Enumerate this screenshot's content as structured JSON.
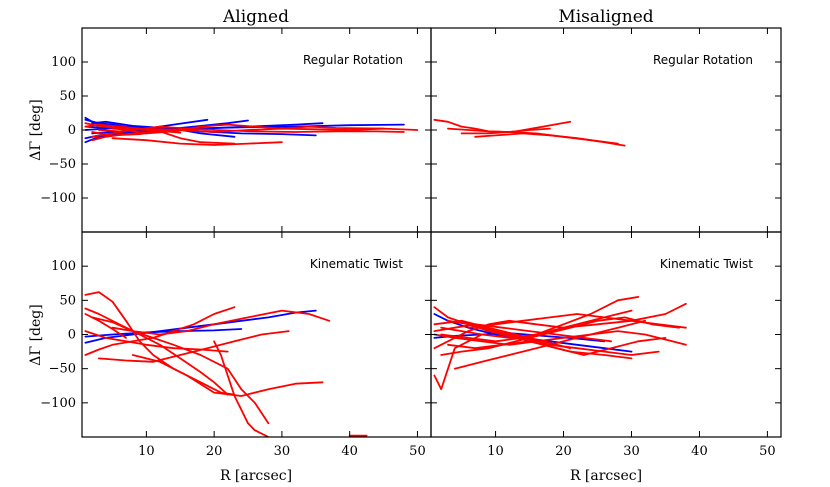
{
  "figure": {
    "column_titles": [
      "Aligned",
      "Misaligned"
    ],
    "xlabel": "R [arcsec]",
    "ylabel": "ΔΓ [deg]",
    "colors": {
      "blue": "#0000ff",
      "red": "#ff0000",
      "axis": "#000000"
    }
  },
  "chart_data": [
    {
      "type": "line",
      "panel": "top-left",
      "title": "Aligned",
      "label": "Regular Rotation",
      "xlim": [
        0.5,
        52
      ],
      "ylim": [
        -150,
        150
      ],
      "xticks": [
        10,
        20,
        30,
        40,
        50
      ],
      "yticks": [
        100,
        50,
        0,
        -50,
        -100
      ],
      "xlabel": "",
      "ylabel": "ΔΓ [deg]",
      "series": [
        {
          "color": "blue",
          "x": [
            1,
            3,
            5,
            8,
            12
          ],
          "y": [
            15,
            10,
            8,
            3,
            0
          ]
        },
        {
          "color": "blue",
          "x": [
            1,
            3,
            6,
            10,
            15,
            20
          ],
          "y": [
            -12,
            -8,
            -4,
            -2,
            0,
            2
          ]
        },
        {
          "color": "blue",
          "x": [
            1,
            4,
            8,
            12,
            18,
            25,
            32,
            36
          ],
          "y": [
            5,
            3,
            0,
            -2,
            2,
            5,
            8,
            10
          ]
        },
        {
          "color": "blue",
          "x": [
            2,
            5,
            10,
            16,
            24,
            32,
            40,
            48
          ],
          "y": [
            -5,
            -3,
            0,
            2,
            4,
            5,
            7,
            8
          ]
        },
        {
          "color": "blue",
          "x": [
            1,
            3,
            7,
            12,
            17,
            22,
            25
          ],
          "y": [
            -18,
            -10,
            -5,
            0,
            5,
            10,
            14
          ]
        },
        {
          "color": "blue",
          "x": [
            2,
            4,
            8,
            14,
            18,
            23
          ],
          "y": [
            10,
            12,
            6,
            2,
            -5,
            -10
          ]
        },
        {
          "color": "blue",
          "x": [
            1,
            2,
            4,
            7,
            10
          ],
          "y": [
            18,
            12,
            5,
            0,
            -5
          ]
        },
        {
          "color": "blue",
          "x": [
            3,
            6,
            10,
            14,
            19
          ],
          "y": [
            -8,
            -5,
            2,
            8,
            15
          ]
        },
        {
          "color": "blue",
          "x": [
            1,
            4,
            8,
            12,
            18,
            24,
            30,
            35
          ],
          "y": [
            0,
            2,
            5,
            3,
            -2,
            -5,
            -6,
            -8
          ]
        },
        {
          "color": "red",
          "x": [
            1,
            3,
            6,
            10,
            14
          ],
          "y": [
            10,
            6,
            2,
            0,
            -2
          ]
        },
        {
          "color": "red",
          "x": [
            2,
            5,
            9,
            12,
            15,
            18,
            23
          ],
          "y": [
            -3,
            -8,
            -6,
            -2,
            -12,
            -18,
            -20
          ]
        },
        {
          "color": "red",
          "x": [
            3,
            6,
            10,
            15,
            20,
            25,
            30,
            35,
            40,
            45,
            50
          ],
          "y": [
            0,
            -2,
            2,
            0,
            -3,
            0,
            2,
            1,
            0,
            2,
            0
          ]
        },
        {
          "color": "red",
          "x": [
            2,
            5,
            8,
            12,
            16,
            20,
            26,
            32,
            38,
            44,
            48
          ],
          "y": [
            -10,
            -5,
            0,
            5,
            2,
            0,
            -2,
            -3,
            -2,
            -2,
            -3
          ]
        },
        {
          "color": "red",
          "x": [
            4,
            7,
            10,
            14,
            18,
            22,
            26,
            30,
            34,
            38,
            45
          ],
          "y": [
            5,
            0,
            -5,
            -2,
            5,
            8,
            5,
            2,
            5,
            3,
            2
          ]
        },
        {
          "color": "red",
          "x": [
            1,
            3,
            6,
            9,
            12,
            15
          ],
          "y": [
            5,
            8,
            5,
            2,
            -1,
            -4
          ]
        },
        {
          "color": "red",
          "x": [
            5,
            10,
            15,
            20,
            25,
            30
          ],
          "y": [
            -12,
            -15,
            -20,
            -22,
            -20,
            -18
          ]
        },
        {
          "color": "red",
          "x": [
            2,
            4,
            7,
            11,
            16
          ],
          "y": [
            -15,
            -10,
            -6,
            -3,
            0
          ]
        }
      ]
    },
    {
      "type": "line",
      "panel": "top-right",
      "title": "Misaligned",
      "label": "Regular Rotation",
      "xlim": [
        0.5,
        52
      ],
      "ylim": [
        -150,
        150
      ],
      "xticks": [
        10,
        20,
        30,
        40,
        50
      ],
      "yticks": [
        100,
        50,
        0,
        -50,
        -100
      ],
      "xlabel": "",
      "ylabel": "",
      "series": [
        {
          "color": "red",
          "x": [
            1,
            3,
            5,
            7,
            9,
            12,
            15,
            18
          ],
          "y": [
            15,
            12,
            5,
            2,
            -2,
            -3,
            0,
            2
          ]
        },
        {
          "color": "red",
          "x": [
            3,
            6,
            9,
            12,
            16,
            20,
            24,
            28
          ],
          "y": [
            2,
            0,
            -2,
            -3,
            -5,
            -10,
            -15,
            -20
          ]
        },
        {
          "color": "red",
          "x": [
            7,
            10,
            14,
            18,
            22,
            26,
            29
          ],
          "y": [
            -10,
            -8,
            -5,
            -8,
            -12,
            -18,
            -23
          ]
        },
        {
          "color": "red",
          "x": [
            5,
            9,
            13,
            17,
            21
          ],
          "y": [
            -5,
            -5,
            -2,
            5,
            12
          ]
        }
      ]
    },
    {
      "type": "line",
      "panel": "bottom-left",
      "title": "",
      "label": "Kinematic Twist",
      "xlim": [
        0.5,
        52
      ],
      "ylim": [
        -150,
        150
      ],
      "xticks": [
        10,
        20,
        30,
        40,
        50
      ],
      "yticks": [
        100,
        50,
        0,
        -50,
        -100
      ],
      "xlabel": "R [arcsec]",
      "ylabel": "ΔΓ [deg]",
      "series": [
        {
          "color": "blue",
          "x": [
            1,
            4,
            8,
            12,
            16,
            20,
            24,
            28,
            32,
            35
          ],
          "y": [
            -12,
            -5,
            0,
            5,
            10,
            15,
            20,
            25,
            32,
            35
          ]
        },
        {
          "color": "blue",
          "x": [
            1,
            5,
            10,
            15,
            20,
            24
          ],
          "y": [
            -3,
            0,
            3,
            5,
            6,
            8
          ]
        },
        {
          "color": "red",
          "x": [
            1,
            3,
            5,
            7,
            9,
            11,
            14,
            18,
            21,
            23
          ],
          "y": [
            58,
            62,
            48,
            20,
            -10,
            -30,
            -50,
            -70,
            -85,
            -88
          ]
        },
        {
          "color": "red",
          "x": [
            1,
            3,
            6,
            9,
            12,
            15,
            18,
            20,
            22
          ],
          "y": [
            38,
            30,
            15,
            0,
            -15,
            -35,
            -55,
            -70,
            -88
          ]
        },
        {
          "color": "red",
          "x": [
            2,
            5,
            8,
            11,
            14,
            18,
            22,
            24,
            26,
            28
          ],
          "y": [
            25,
            18,
            5,
            -5,
            -15,
            -30,
            -50,
            -80,
            -100,
            -130
          ]
        },
        {
          "color": "red",
          "x": [
            20,
            21,
            22,
            23,
            24,
            25,
            26,
            28
          ],
          "y": [
            -10,
            -30,
            -60,
            -90,
            -110,
            -130,
            -140,
            -150
          ]
        },
        {
          "color": "red",
          "x": [
            8,
            12,
            16,
            20,
            24,
            28,
            32,
            36
          ],
          "y": [
            -30,
            -40,
            -60,
            -85,
            -90,
            -80,
            -72,
            -70
          ]
        },
        {
          "color": "red",
          "x": [
            1,
            3,
            5,
            8,
            11,
            14,
            17,
            20,
            23
          ],
          "y": [
            -30,
            -22,
            -15,
            -10,
            -5,
            5,
            15,
            30,
            40
          ]
        },
        {
          "color": "red",
          "x": [
            5,
            8,
            12,
            16,
            20,
            25,
            30,
            34,
            37
          ],
          "y": [
            10,
            5,
            0,
            5,
            15,
            25,
            35,
            30,
            20
          ]
        },
        {
          "color": "red",
          "x": [
            1,
            4,
            7,
            10,
            14,
            18,
            22
          ],
          "y": [
            5,
            -5,
            -10,
            -15,
            -20,
            -22,
            -25
          ]
        },
        {
          "color": "red",
          "x": [
            3,
            7,
            11,
            15,
            19,
            23,
            27,
            31
          ],
          "y": [
            -35,
            -38,
            -40,
            -30,
            -20,
            -10,
            0,
            5
          ]
        },
        {
          "color": "red",
          "x": [
            1,
            3,
            5,
            7
          ],
          "y": [
            30,
            20,
            8,
            -5
          ]
        },
        {
          "color": "red",
          "x": [
            40,
            42.5
          ],
          "y": [
            -148,
            -148
          ]
        }
      ]
    },
    {
      "type": "line",
      "panel": "bottom-right",
      "title": "",
      "label": "Kinematic Twist",
      "xlim": [
        0.5,
        52
      ],
      "ylim": [
        -150,
        150
      ],
      "xticks": [
        10,
        20,
        30,
        40,
        50
      ],
      "yticks": [
        100,
        50,
        0,
        -50,
        -100
      ],
      "xlabel": "R [arcsec]",
      "ylabel": "",
      "series": [
        {
          "color": "blue",
          "x": [
            1,
            3,
            6,
            10,
            14,
            18,
            22,
            26,
            30
          ],
          "y": [
            30,
            20,
            10,
            0,
            -5,
            -10,
            -15,
            -20,
            -25
          ]
        },
        {
          "color": "blue",
          "x": [
            1,
            4,
            8,
            12,
            17,
            22,
            26
          ],
          "y": [
            -5,
            -2,
            0,
            2,
            -2,
            -6,
            -10
          ]
        },
        {
          "color": "red",
          "x": [
            1,
            2,
            3,
            4,
            6,
            8
          ],
          "y": [
            -60,
            -80,
            -50,
            -20,
            -10,
            0
          ]
        },
        {
          "color": "red",
          "x": [
            1,
            3,
            6,
            9,
            12,
            16,
            20,
            25,
            30,
            35,
            38
          ],
          "y": [
            -20,
            -10,
            5,
            15,
            20,
            15,
            10,
            15,
            20,
            30,
            45
          ]
        },
        {
          "color": "red",
          "x": [
            2,
            5,
            8,
            12,
            16,
            20,
            24,
            28,
            31
          ],
          "y": [
            10,
            5,
            0,
            -5,
            0,
            15,
            30,
            50,
            55
          ]
        },
        {
          "color": "red",
          "x": [
            1,
            4,
            8,
            12,
            16,
            20,
            24,
            28,
            32,
            36,
            38
          ],
          "y": [
            0,
            -5,
            -10,
            -15,
            -10,
            -5,
            0,
            5,
            0,
            -10,
            -15
          ]
        },
        {
          "color": "red",
          "x": [
            3,
            6,
            10,
            14,
            18,
            22,
            26,
            30,
            34
          ],
          "y": [
            20,
            15,
            5,
            -5,
            -15,
            -20,
            -25,
            -30,
            -25
          ]
        },
        {
          "color": "red",
          "x": [
            2,
            5,
            9,
            13,
            17,
            21,
            25,
            29,
            33,
            37
          ],
          "y": [
            -30,
            -25,
            -20,
            -10,
            0,
            10,
            20,
            25,
            15,
            10
          ]
        },
        {
          "color": "red",
          "x": [
            1,
            3,
            6,
            9,
            13,
            17,
            21,
            26,
            30
          ],
          "y": [
            40,
            25,
            15,
            5,
            -5,
            -15,
            -25,
            -30,
            -35
          ]
        },
        {
          "color": "red",
          "x": [
            4,
            8,
            12,
            16,
            20,
            24,
            28,
            32
          ],
          "y": [
            -50,
            -40,
            -30,
            -20,
            -10,
            0,
            10,
            20
          ]
        },
        {
          "color": "red",
          "x": [
            1,
            4,
            7,
            11,
            15,
            19,
            23,
            27
          ],
          "y": [
            5,
            10,
            15,
            10,
            5,
            0,
            -5,
            -10
          ]
        },
        {
          "color": "red",
          "x": [
            6,
            10,
            14,
            18,
            22,
            26,
            30,
            34,
            38
          ],
          "y": [
            10,
            15,
            20,
            25,
            30,
            25,
            20,
            15,
            10
          ]
        },
        {
          "color": "red",
          "x": [
            2,
            6,
            10,
            14,
            18,
            22,
            26,
            30
          ],
          "y": [
            0,
            -5,
            -10,
            -5,
            5,
            15,
            25,
            35
          ]
        },
        {
          "color": "red",
          "x": [
            3,
            7,
            11,
            15,
            19,
            23,
            27,
            31,
            35
          ],
          "y": [
            -15,
            -20,
            -15,
            -10,
            -20,
            -30,
            -20,
            -10,
            -5
          ]
        },
        {
          "color": "red",
          "x": [
            1,
            5,
            9,
            13,
            17,
            21
          ],
          "y": [
            15,
            20,
            10,
            0,
            -10,
            -20
          ]
        }
      ]
    }
  ]
}
